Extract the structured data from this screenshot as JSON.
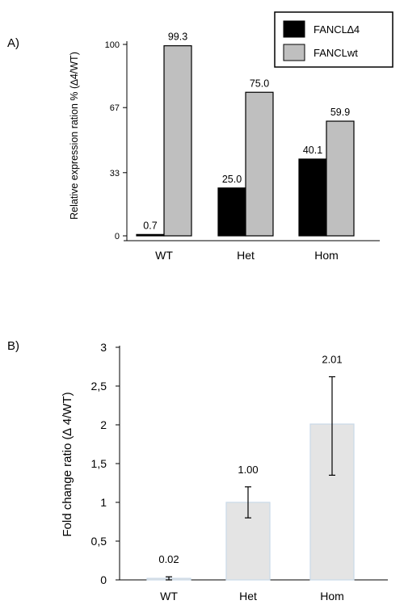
{
  "panel_labels": {
    "a": "A)",
    "b": "B)"
  },
  "chart_data": [
    {
      "type": "bar",
      "ylabel": "Relative expression ration % (∆4/WT)",
      "ylim": [
        0,
        100
      ],
      "yticks": [
        "0",
        "33",
        "67",
        "100"
      ],
      "ytick_values": [
        0,
        33,
        67,
        100
      ],
      "categories": [
        "WT",
        "Het",
        "Hom"
      ],
      "series": [
        {
          "name": "FANCL∆4",
          "values": [
            0.7,
            25.0,
            40.1
          ],
          "labels": [
            "0.7",
            "25.0",
            "40.1"
          ],
          "color": "#000000"
        },
        {
          "name": "FANCLwt",
          "values": [
            99.3,
            75.0,
            59.9
          ],
          "labels": [
            "99.3",
            "75.0",
            "59.9"
          ],
          "color": "#bfbfbf"
        }
      ],
      "legend": "top-right"
    },
    {
      "type": "bar",
      "ylabel": "Fold change ratio (∆ 4/WT)",
      "ylim": [
        0,
        3
      ],
      "yticks": [
        "0",
        "0,5",
        "1",
        "1,5",
        "2",
        "2,5",
        "3"
      ],
      "ytick_values": [
        0,
        0.5,
        1,
        1.5,
        2,
        2.5,
        3
      ],
      "categories": [
        "WT",
        "Het",
        "Hom"
      ],
      "values": [
        0.02,
        1.0,
        2.01
      ],
      "labels": [
        "0.02",
        "1.00",
        "2.01"
      ],
      "error_low": [
        0.0,
        0.8,
        1.35
      ],
      "error_high": [
        0.04,
        1.2,
        2.62
      ],
      "color": "#e4e4e4"
    }
  ]
}
